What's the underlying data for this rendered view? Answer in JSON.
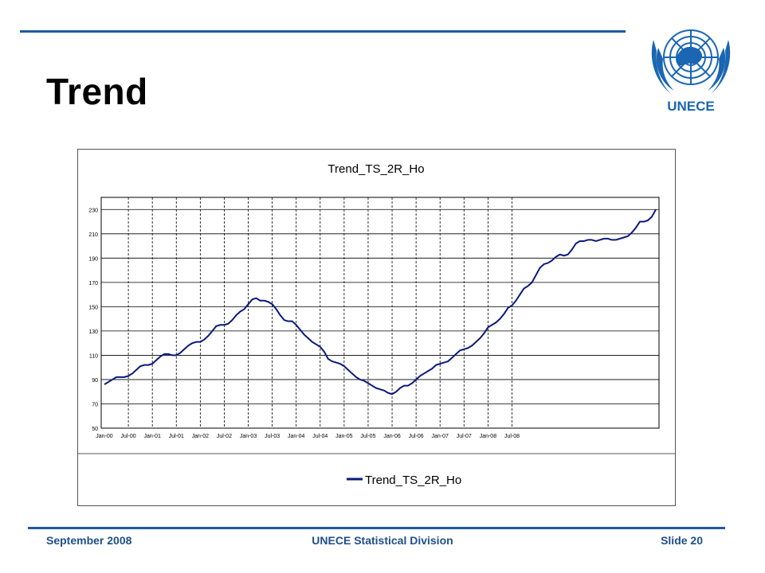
{
  "slide": {
    "title": "Trend",
    "logo_text": "UNECE"
  },
  "footer": {
    "date": "September 2008",
    "organization": "UNECE Statistical Division",
    "slide_number": "Slide 20"
  },
  "colors": {
    "rule": "#1f5a9e",
    "footer_text": "#1f4e8c",
    "series": "#0a1a7a",
    "logo": "#1a66b3"
  },
  "chart_data": {
    "type": "line",
    "title": "Trend_TS_2R_Ho",
    "xlabel": "",
    "ylabel": "",
    "ylim": [
      50,
      240
    ],
    "yticks": [
      50,
      70,
      90,
      110,
      130,
      150,
      170,
      190,
      210,
      230
    ],
    "xticks": [
      "Jan-00",
      "Jul-00",
      "Jan-01",
      "Jul-01",
      "Jan-02",
      "Jul-02",
      "Jan-03",
      "Jul-03",
      "Jan-04",
      "Jul-04",
      "Jan-05",
      "Jul-05",
      "Jan-06",
      "Jul-06",
      "Jan-07",
      "Jul-07",
      "Jan-08",
      "Jul-08"
    ],
    "grid": "horizontal solid, vertical dashed at half-year ticks",
    "legend": "bottom",
    "series": [
      {
        "name": "Trend_TS_2R_Ho",
        "x_start": "Jan-00",
        "frequency": "monthly",
        "values": [
          86,
          88,
          90,
          92,
          92,
          92,
          93,
          95,
          98,
          101,
          102,
          102,
          103,
          106,
          109,
          111,
          111,
          110,
          110,
          112,
          115,
          118,
          120,
          121,
          121,
          123,
          126,
          130,
          134,
          135,
          135,
          136,
          139,
          143,
          146,
          148,
          152,
          156,
          157,
          155,
          155,
          154,
          152,
          148,
          143,
          139,
          138,
          138,
          135,
          131,
          127,
          124,
          121,
          119,
          117,
          113,
          107,
          105,
          104,
          103,
          101,
          98,
          95,
          92,
          90,
          89,
          87,
          85,
          83,
          82,
          81,
          79,
          78,
          80,
          83,
          85,
          85,
          87,
          90,
          93,
          95,
          97,
          99,
          102,
          103,
          104,
          105,
          108,
          111,
          114,
          115,
          116,
          118,
          121,
          124,
          128,
          133,
          135,
          137,
          140,
          144,
          149,
          151,
          155,
          160,
          165,
          167,
          170,
          176,
          182,
          185,
          186,
          188,
          191,
          193,
          192,
          193,
          197,
          202,
          204,
          204,
          205,
          205,
          204,
          205,
          206,
          206,
          205,
          205,
          206,
          207,
          208,
          211,
          215,
          220,
          220,
          221,
          224,
          230
        ]
      }
    ]
  }
}
